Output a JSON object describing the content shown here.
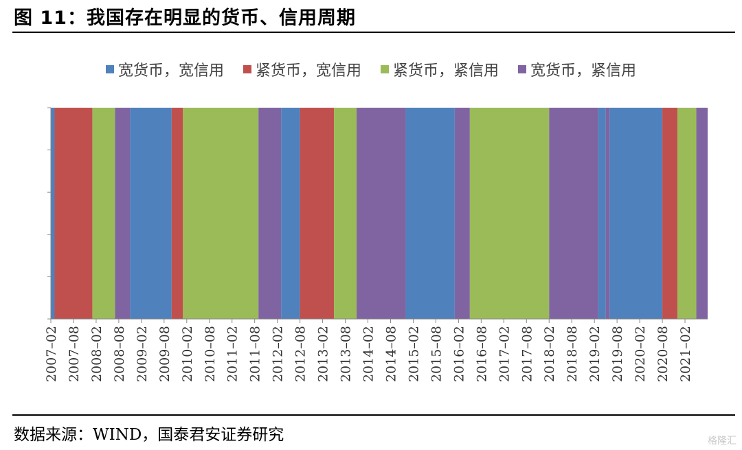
{
  "title": "图 11：我国存在明显的货币、信用周期",
  "source": "数据来源：WIND，国泰君安证券研究",
  "watermark": "格隆汇",
  "colors": {
    "wide_wide": "#4f81bd",
    "tight_wide": "#c0504d",
    "tight_tight": "#9bbb59",
    "wide_tight": "#8064a2"
  },
  "chart_data": {
    "type": "bar",
    "title": "",
    "xlabel": "",
    "ylabel": "",
    "legend_position": "top-center",
    "grid": false,
    "y_range": [
      0,
      1
    ],
    "x_start": "2007-02",
    "x_end": "2021-08",
    "tick_labels": [
      "2007–02",
      "2007–08",
      "2008–02",
      "2008–08",
      "2009–02",
      "2009–08",
      "2010–02",
      "2010–08",
      "2011–02",
      "2011–08",
      "2012–02",
      "2012–08",
      "2013–02",
      "2013–08",
      "2014–02",
      "2014–08",
      "2015–02",
      "2015–08",
      "2016–02",
      "2016–08",
      "2017–02",
      "2017–08",
      "2018–02",
      "2018–08",
      "2019–02",
      "2019–08",
      "2020–02",
      "2020–08",
      "2021–02"
    ],
    "series": [
      {
        "key": "wide_wide",
        "name": "宽货币，宽信用"
      },
      {
        "key": "tight_wide",
        "name": "紧货币，宽信用"
      },
      {
        "key": "tight_tight",
        "name": "紧货币，紧信用"
      },
      {
        "key": "wide_tight",
        "name": "宽货币，紧信用"
      }
    ],
    "periods": [
      {
        "start": "2007-02",
        "end": "2007-03",
        "regime": "wide_wide"
      },
      {
        "start": "2007-03",
        "end": "2008-01",
        "regime": "tight_wide"
      },
      {
        "start": "2008-01",
        "end": "2008-07",
        "regime": "tight_tight"
      },
      {
        "start": "2008-07",
        "end": "2008-11",
        "regime": "wide_tight"
      },
      {
        "start": "2008-11",
        "end": "2009-10",
        "regime": "wide_wide"
      },
      {
        "start": "2009-10",
        "end": "2010-01",
        "regime": "tight_wide"
      },
      {
        "start": "2010-01",
        "end": "2011-09",
        "regime": "tight_tight"
      },
      {
        "start": "2011-09",
        "end": "2012-03",
        "regime": "wide_tight"
      },
      {
        "start": "2012-03",
        "end": "2012-08",
        "regime": "wide_wide"
      },
      {
        "start": "2012-08",
        "end": "2013-05",
        "regime": "tight_wide"
      },
      {
        "start": "2013-05",
        "end": "2013-11",
        "regime": "tight_tight"
      },
      {
        "start": "2013-11",
        "end": "2014-12",
        "regime": "wide_tight"
      },
      {
        "start": "2014-12",
        "end": "2016-01",
        "regime": "wide_wide"
      },
      {
        "start": "2016-01",
        "end": "2016-05",
        "regime": "wide_tight"
      },
      {
        "start": "2016-05",
        "end": "2018-02",
        "regime": "tight_tight"
      },
      {
        "start": "2018-02",
        "end": "2019-03",
        "regime": "wide_tight"
      },
      {
        "start": "2019-03",
        "end": "2019-05",
        "regime": "wide_wide"
      },
      {
        "start": "2019-05",
        "end": "2019-06",
        "regime": "wide_tight"
      },
      {
        "start": "2019-06",
        "end": "2020-08",
        "regime": "wide_wide"
      },
      {
        "start": "2020-08",
        "end": "2020-12",
        "regime": "tight_wide"
      },
      {
        "start": "2020-12",
        "end": "2021-05",
        "regime": "tight_tight"
      },
      {
        "start": "2021-05",
        "end": "2021-10",
        "regime": "wide_tight"
      }
    ]
  }
}
